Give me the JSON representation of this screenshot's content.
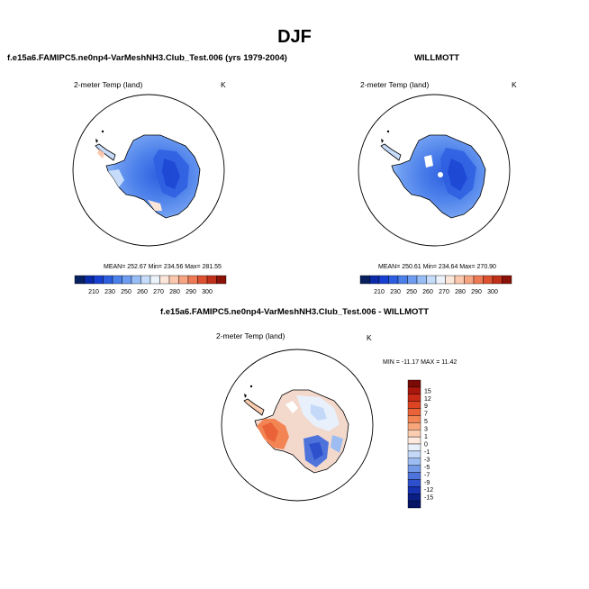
{
  "page": {
    "title": "DJF"
  },
  "panels": [
    {
      "id": "model",
      "header": "f.e15a6.FAMIPC5.ne0np4-VarMeshNH3.Club_Test.006 (yrs 1979-2004)",
      "field": "2-meter Temp (land)",
      "units": "K",
      "stats": "MEAN= 252.67   Min= 234.56   Max= 281.55",
      "colorbar": {
        "ticks": [
          "210",
          "230",
          "250",
          "260",
          "270",
          "280",
          "290",
          "300"
        ],
        "colors": [
          "#08205e",
          "#0a2aa8",
          "#1740d0",
          "#2e5ee0",
          "#4b7fea",
          "#6d9cf1",
          "#96bdf6",
          "#c6dcfa",
          "#ecf3fd",
          "#fde7da",
          "#fbc8ae",
          "#f7a482",
          "#ee7a55",
          "#dd5030",
          "#c0301a",
          "#8a1208"
        ]
      }
    },
    {
      "id": "obs",
      "header": "WILLMOTT",
      "field": "2-meter Temp (land)",
      "units": "K",
      "stats": "MEAN= 250.61   Min= 234.64   Max= 270.90",
      "colorbar": {
        "ticks": [
          "210",
          "230",
          "250",
          "260",
          "270",
          "280",
          "290",
          "300"
        ],
        "colors": [
          "#08205e",
          "#0a2aa8",
          "#1740d0",
          "#2e5ee0",
          "#4b7fea",
          "#6d9cf1",
          "#96bdf6",
          "#c6dcfa",
          "#ecf3fd",
          "#fde7da",
          "#fbc8ae",
          "#f7a482",
          "#ee7a55",
          "#dd5030",
          "#c0301a",
          "#8a1208"
        ]
      }
    }
  ],
  "diff": {
    "header": "f.e15a6.FAMIPC5.ne0np4-VarMeshNH3.Club_Test.006 - WILLMOTT",
    "field": "2-meter Temp (land)",
    "units": "K",
    "stats": "MIN = -11.17  MAX =  11.42",
    "colorbar": {
      "ticks": [
        "15",
        "12",
        "9",
        "7",
        "5",
        "3",
        "1",
        "0",
        "-1",
        "-3",
        "-5",
        "-7",
        "-9",
        "-12",
        "-15"
      ],
      "colors": [
        "#7a0a06",
        "#a8160c",
        "#c82a16",
        "#dc4424",
        "#ea6238",
        "#f38454",
        "#f8a67a",
        "#fbcdb0",
        "#fde9dd",
        "#e8f0fc",
        "#c4d8f8",
        "#9dbdf2",
        "#7399e8",
        "#4e74dc",
        "#2f50cc",
        "#1833b0",
        "#0a1f86",
        "#061466"
      ]
    }
  }
}
